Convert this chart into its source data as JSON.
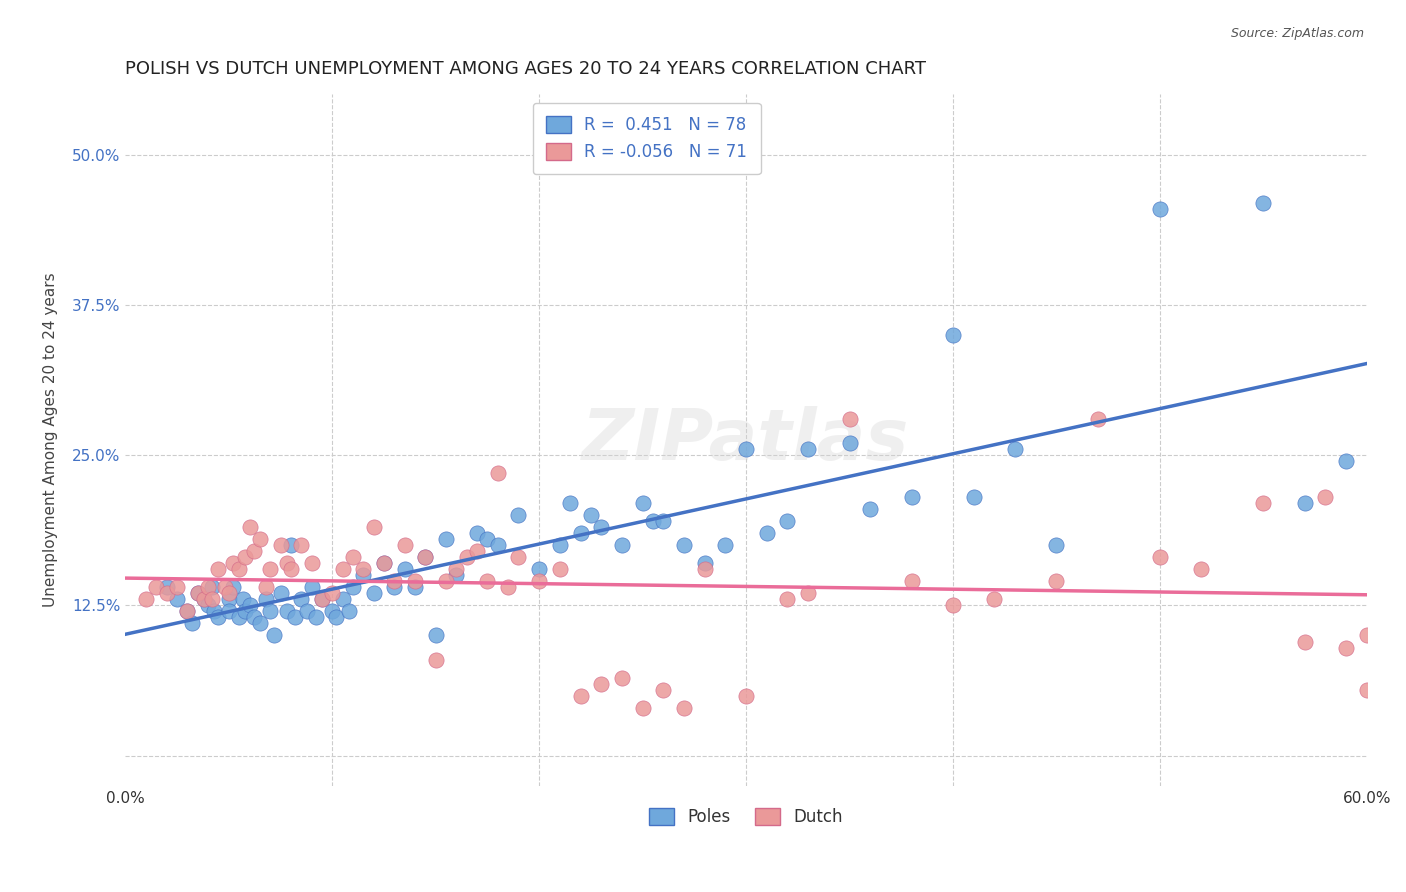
{
  "title": "POLISH VS DUTCH UNEMPLOYMENT AMONG AGES 20 TO 24 YEARS CORRELATION CHART",
  "source": "Source: ZipAtlas.com",
  "xlabel": "",
  "ylabel": "Unemployment Among Ages 20 to 24 years",
  "xlim": [
    0.0,
    0.6
  ],
  "ylim": [
    -0.02,
    0.54
  ],
  "xticks": [
    0.0,
    0.1,
    0.2,
    0.3,
    0.4,
    0.5,
    0.6
  ],
  "xticklabels": [
    "0.0%",
    "",
    "",
    "",
    "",
    "",
    "60.0%"
  ],
  "yticks": [
    0.0,
    0.125,
    0.25,
    0.375,
    0.5
  ],
  "yticklabels": [
    "",
    "12.5%",
    "25.0%",
    "37.5%",
    "50.0%"
  ],
  "poles_R": 0.451,
  "poles_N": 78,
  "dutch_R": -0.056,
  "dutch_N": 71,
  "poles_color": "#6fa8dc",
  "dutch_color": "#ea9999",
  "poles_line_color": "#4472c4",
  "dutch_line_color": "#ea6c99",
  "legend_label_poles": "Poles",
  "legend_label_dutch": "Dutch",
  "background_color": "#ffffff",
  "watermark": "ZIPatlas",
  "poles_x": [
    0.02,
    0.025,
    0.03,
    0.032,
    0.035,
    0.038,
    0.04,
    0.042,
    0.043,
    0.045,
    0.05,
    0.05,
    0.052,
    0.055,
    0.057,
    0.058,
    0.06,
    0.062,
    0.065,
    0.068,
    0.07,
    0.072,
    0.075,
    0.078,
    0.08,
    0.082,
    0.085,
    0.088,
    0.09,
    0.092,
    0.095,
    0.1,
    0.102,
    0.105,
    0.108,
    0.11,
    0.115,
    0.12,
    0.125,
    0.13,
    0.135,
    0.14,
    0.145,
    0.15,
    0.155,
    0.16,
    0.17,
    0.175,
    0.18,
    0.19,
    0.2,
    0.21,
    0.215,
    0.22,
    0.225,
    0.23,
    0.24,
    0.25,
    0.255,
    0.26,
    0.27,
    0.28,
    0.29,
    0.3,
    0.31,
    0.32,
    0.33,
    0.35,
    0.36,
    0.38,
    0.4,
    0.41,
    0.43,
    0.45,
    0.5,
    0.55,
    0.57,
    0.59
  ],
  "poles_y": [
    0.14,
    0.13,
    0.12,
    0.11,
    0.135,
    0.13,
    0.125,
    0.14,
    0.12,
    0.115,
    0.13,
    0.12,
    0.14,
    0.115,
    0.13,
    0.12,
    0.125,
    0.115,
    0.11,
    0.13,
    0.12,
    0.1,
    0.135,
    0.12,
    0.175,
    0.115,
    0.13,
    0.12,
    0.14,
    0.115,
    0.13,
    0.12,
    0.115,
    0.13,
    0.12,
    0.14,
    0.15,
    0.135,
    0.16,
    0.14,
    0.155,
    0.14,
    0.165,
    0.1,
    0.18,
    0.15,
    0.185,
    0.18,
    0.175,
    0.2,
    0.155,
    0.175,
    0.21,
    0.185,
    0.2,
    0.19,
    0.175,
    0.21,
    0.195,
    0.195,
    0.175,
    0.16,
    0.175,
    0.255,
    0.185,
    0.195,
    0.255,
    0.26,
    0.205,
    0.215,
    0.35,
    0.215,
    0.255,
    0.175,
    0.455,
    0.46,
    0.21,
    0.245
  ],
  "dutch_x": [
    0.01,
    0.015,
    0.02,
    0.025,
    0.03,
    0.035,
    0.038,
    0.04,
    0.042,
    0.045,
    0.048,
    0.05,
    0.052,
    0.055,
    0.058,
    0.06,
    0.062,
    0.065,
    0.068,
    0.07,
    0.075,
    0.078,
    0.08,
    0.085,
    0.09,
    0.095,
    0.1,
    0.105,
    0.11,
    0.115,
    0.12,
    0.125,
    0.13,
    0.135,
    0.14,
    0.145,
    0.15,
    0.155,
    0.16,
    0.165,
    0.17,
    0.175,
    0.18,
    0.185,
    0.19,
    0.2,
    0.21,
    0.22,
    0.23,
    0.24,
    0.25,
    0.26,
    0.27,
    0.28,
    0.3,
    0.32,
    0.33,
    0.35,
    0.38,
    0.4,
    0.42,
    0.45,
    0.47,
    0.5,
    0.52,
    0.55,
    0.57,
    0.58,
    0.59,
    0.6,
    0.6
  ],
  "dutch_y": [
    0.13,
    0.14,
    0.135,
    0.14,
    0.12,
    0.135,
    0.13,
    0.14,
    0.13,
    0.155,
    0.14,
    0.135,
    0.16,
    0.155,
    0.165,
    0.19,
    0.17,
    0.18,
    0.14,
    0.155,
    0.175,
    0.16,
    0.155,
    0.175,
    0.16,
    0.13,
    0.135,
    0.155,
    0.165,
    0.155,
    0.19,
    0.16,
    0.145,
    0.175,
    0.145,
    0.165,
    0.08,
    0.145,
    0.155,
    0.165,
    0.17,
    0.145,
    0.235,
    0.14,
    0.165,
    0.145,
    0.155,
    0.05,
    0.06,
    0.065,
    0.04,
    0.055,
    0.04,
    0.155,
    0.05,
    0.13,
    0.135,
    0.28,
    0.145,
    0.125,
    0.13,
    0.145,
    0.28,
    0.165,
    0.155,
    0.21,
    0.095,
    0.215,
    0.09,
    0.1,
    0.055
  ]
}
